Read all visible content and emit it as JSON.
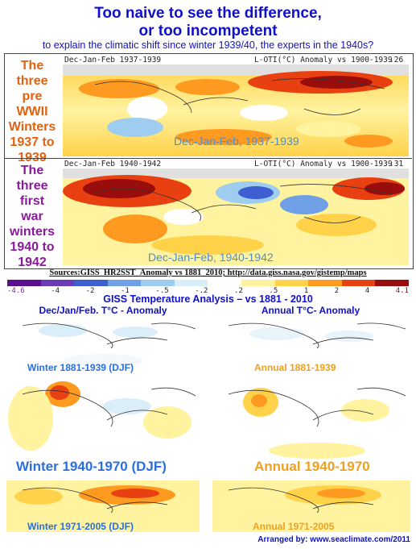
{
  "header": {
    "line1": "Too naive to see the difference,",
    "line2": "or too incompetent",
    "line3": "to explain the climatic shift since winter 1939/40, the experts in the 1940s?"
  },
  "top_maps": [
    {
      "side_label": "The three pre WWII Winters 1937 to 1939",
      "side_lines": [
        "The",
        "three",
        "pre",
        "WWII",
        "Winters",
        "1937 to",
        "1939"
      ],
      "side_color": "#e2620f",
      "head_left": "Dec-Jan-Feb 1937-1939",
      "head_mid": "L-OTI(°C) Anomaly vs 1900-1939",
      "head_right": ".26",
      "overlay": "Dec-Jan-Feb, 1937-1939"
    },
    {
      "side_label": "The three first war winters 1940 to 1942",
      "side_lines": [
        "The",
        "three",
        "first",
        "war",
        "winters",
        "1940 to",
        "1942"
      ],
      "side_color": "#8a1a9b",
      "head_left": "Dec-Jan-Feb 1940-1942",
      "head_mid": "L-OTI(°C) Anomaly vs 1900-1939",
      "head_right": ".31",
      "overlay": "Dec-Jan-Feb, 1940-1942"
    }
  ],
  "sources": "Sources:GISS_HR2SST_Anomaly vs 1881_2010; http://data.giss.nasa.gov/gistemp/maps",
  "scale": {
    "ticks": [
      "-4.6",
      "-4",
      "-2",
      "-1",
      "-.5",
      "-.2",
      ".2",
      ".5",
      "1",
      "2",
      "4",
      "4.1"
    ],
    "colors": [
      "#5b0f8f",
      "#6a3db6",
      "#3d5fd0",
      "#6fa0e6",
      "#9fcdf0",
      "#d9eef8",
      "#ffffff",
      "#fff3a0",
      "#ffd24a",
      "#ff9a20",
      "#e84010",
      "#9a0d0d"
    ]
  },
  "giss_title": "GISS Temperature Analysis – vs 1881 - 2010",
  "col_headers": {
    "left": "Dec/Jan/Feb. T°C - Anomaly",
    "right": "Annual T°C- Anomaly"
  },
  "panels": [
    {
      "left": "Winter 1881-1939 (DJF)",
      "right": "Annual 1881-1939"
    },
    {
      "left": "Winter 1940-1970 (DJF)",
      "right": "Annual 1940-1970"
    },
    {
      "left": "Winter 1971-2005 (DJF)",
      "right": "Annual 1971-2005"
    }
  ],
  "footer": "Arranged by: www.seaclimate.com/2011",
  "colors": {
    "title_blue": "#1010c8",
    "caption_blue": "#2a6fe0",
    "caption_orange": "#f0a020"
  }
}
